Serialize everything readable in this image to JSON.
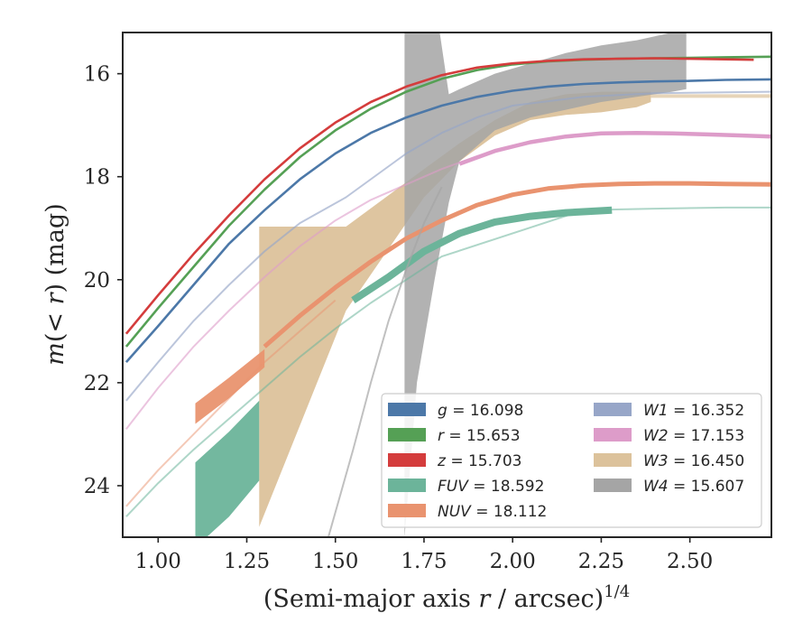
{
  "chart_data": {
    "type": "line",
    "xlabel": "(Semi-major axis r / arcsec)^(1/4)",
    "ylabel": "m(< r) (mag)",
    "xlim": [
      0.9,
      2.73
    ],
    "ylim": [
      25.0,
      15.2
    ],
    "y_inverted": true,
    "grid": false,
    "legend_position": "lower-right",
    "x_ticks": [
      "1.00",
      "1.25",
      "1.50",
      "1.75",
      "2.00",
      "2.25",
      "2.50"
    ],
    "x_tick_values": [
      1.0,
      1.25,
      1.5,
      1.75,
      2.0,
      2.25,
      2.5
    ],
    "y_ticks": [
      "16",
      "18",
      "20",
      "22",
      "24"
    ],
    "y_tick_values": [
      16,
      18,
      20,
      22,
      24
    ],
    "legend": [
      {
        "label": "g = 16.098",
        "color": "#4c78a8"
      },
      {
        "label": "r = 15.653",
        "color": "#55a055"
      },
      {
        "label": "z = 15.703",
        "color": "#d43c3c"
      },
      {
        "label": "FUV = 18.592",
        "color": "#6cb49a"
      },
      {
        "label": "NUV = 18.112",
        "color": "#e9936f"
      },
      {
        "label": "W1 = 16.352",
        "color": "#97a6c8"
      },
      {
        "label": "W2 = 17.153",
        "color": "#dd9cc9"
      },
      {
        "label": "W3 = 16.450",
        "color": "#dcc29b"
      },
      {
        "label": "W4 = 15.607",
        "color": "#a5a5a5"
      }
    ],
    "series": [
      {
        "name": "g",
        "color": "#4c78a8",
        "width": 2.6,
        "opacity": 1,
        "x": [
          0.91,
          1.0,
          1.1,
          1.2,
          1.3,
          1.4,
          1.5,
          1.6,
          1.7,
          1.8,
          1.9,
          2.0,
          2.1,
          2.2,
          2.3,
          2.4,
          2.5,
          2.6,
          2.73
        ],
        "y": [
          21.6,
          20.9,
          20.1,
          19.3,
          18.65,
          18.05,
          17.55,
          17.15,
          16.85,
          16.62,
          16.45,
          16.33,
          16.25,
          16.2,
          16.17,
          16.15,
          16.14,
          16.12,
          16.11
        ]
      },
      {
        "name": "r",
        "color": "#55a055",
        "width": 2.6,
        "opacity": 1,
        "x": [
          0.91,
          1.0,
          1.1,
          1.2,
          1.3,
          1.4,
          1.5,
          1.6,
          1.7,
          1.8,
          1.9,
          2.0,
          2.1,
          2.2,
          2.3,
          2.4,
          2.5,
          2.6,
          2.73
        ],
        "y": [
          21.3,
          20.55,
          19.75,
          18.95,
          18.25,
          17.62,
          17.1,
          16.68,
          16.35,
          16.1,
          15.93,
          15.82,
          15.76,
          15.73,
          15.71,
          15.7,
          15.69,
          15.68,
          15.67
        ]
      },
      {
        "name": "z",
        "color": "#d43c3c",
        "width": 2.6,
        "opacity": 1,
        "x": [
          0.91,
          1.0,
          1.1,
          1.2,
          1.3,
          1.4,
          1.5,
          1.6,
          1.7,
          1.8,
          1.9,
          2.0,
          2.1,
          2.2,
          2.3,
          2.4,
          2.5,
          2.6,
          2.68
        ],
        "y": [
          21.05,
          20.3,
          19.5,
          18.75,
          18.05,
          17.45,
          16.95,
          16.55,
          16.25,
          16.03,
          15.88,
          15.8,
          15.75,
          15.72,
          15.71,
          15.7,
          15.71,
          15.72,
          15.73
        ]
      },
      {
        "name": "W1",
        "color": "#97a6c8",
        "width": 2.0,
        "opacity": 0.65,
        "x": [
          0.91,
          1.0,
          1.1,
          1.2,
          1.3,
          1.4,
          1.53,
          1.7,
          1.8,
          1.9,
          2.0,
          2.2,
          2.4,
          2.6,
          2.73
        ],
        "y": [
          22.35,
          21.6,
          20.8,
          20.1,
          19.45,
          18.9,
          18.4,
          17.55,
          17.15,
          16.85,
          16.62,
          16.45,
          16.38,
          16.36,
          16.35
        ]
      },
      {
        "name": "W2",
        "color": "#dd9cc9",
        "width": 2.0,
        "opacity": 0.6,
        "x": [
          0.91,
          1.0,
          1.1,
          1.2,
          1.3,
          1.4,
          1.5,
          1.6,
          1.7,
          1.8,
          1.9,
          2.0,
          2.1,
          2.2,
          2.3,
          2.4,
          2.5,
          2.6,
          2.73
        ],
        "y": [
          22.9,
          22.1,
          21.3,
          20.6,
          19.95,
          19.35,
          18.85,
          18.45,
          18.15,
          17.85,
          17.6,
          17.4,
          17.28,
          17.18,
          17.15,
          17.16,
          17.18,
          17.2,
          17.22
        ]
      },
      {
        "name": "W2-band",
        "color": "#dd9cc9",
        "width": 4.5,
        "opacity": 1,
        "x": [
          1.85,
          1.95,
          2.05,
          2.15,
          2.25,
          2.35,
          2.45,
          2.55,
          2.65,
          2.73
        ],
        "y": [
          17.75,
          17.5,
          17.33,
          17.22,
          17.16,
          17.15,
          17.16,
          17.18,
          17.2,
          17.22
        ]
      },
      {
        "name": "NUV-faint",
        "color": "#e9936f",
        "width": 2.0,
        "opacity": 0.5,
        "x": [
          0.91,
          1.0,
          1.1,
          1.2,
          1.3,
          1.4,
          1.5
        ],
        "y": [
          24.4,
          23.7,
          23.0,
          22.3,
          21.6,
          21.0,
          20.4
        ]
      },
      {
        "name": "NUV",
        "color": "#e9936f",
        "width": 5,
        "opacity": 1,
        "x": [
          1.3,
          1.4,
          1.5,
          1.6,
          1.7,
          1.8,
          1.9,
          2.0,
          2.1,
          2.2,
          2.3,
          2.4,
          2.5,
          2.6,
          2.73
        ],
        "y": [
          21.3,
          20.7,
          20.15,
          19.65,
          19.2,
          18.85,
          18.55,
          18.35,
          18.23,
          18.17,
          18.14,
          18.13,
          18.13,
          18.14,
          18.15
        ]
      },
      {
        "name": "FUV-faint",
        "color": "#6cb49a",
        "width": 2.0,
        "opacity": 0.55,
        "x": [
          0.91,
          1.0,
          1.1,
          1.2,
          1.3,
          1.4,
          1.5,
          1.6,
          1.7,
          1.8,
          2.2,
          2.4,
          2.6,
          2.73
        ],
        "y": [
          24.6,
          23.95,
          23.3,
          22.7,
          22.1,
          21.5,
          20.95,
          20.45,
          20.0,
          19.55,
          18.65,
          18.62,
          18.6,
          18.6
        ]
      },
      {
        "name": "FUV",
        "color": "#6cb49a",
        "width": 8,
        "opacity": 1,
        "x": [
          1.55,
          1.65,
          1.75,
          1.85,
          1.95,
          2.05,
          2.15,
          2.28
        ],
        "y": [
          20.4,
          19.95,
          19.45,
          19.1,
          18.88,
          18.77,
          18.7,
          18.65
        ]
      },
      {
        "name": "W4-faint",
        "color": "#a5a5a5",
        "width": 2.0,
        "opacity": 0.7,
        "x": [
          1.48,
          1.55,
          1.6,
          1.65,
          1.7,
          1.75,
          1.8
        ],
        "y": [
          25.0,
          23.3,
          22.0,
          20.8,
          19.8,
          18.9,
          18.2
        ]
      }
    ],
    "bands": [
      {
        "name": "W3",
        "color": "#dcc29b",
        "opacity": 0.95,
        "upper": {
          "x": [
            1.285,
            1.53,
            1.75,
            1.85,
            1.95,
            2.05,
            2.15,
            2.25,
            2.35,
            2.39
          ],
          "y": [
            18.97,
            18.97,
            17.85,
            17.35,
            16.9,
            16.55,
            16.4,
            16.35,
            16.35,
            16.35
          ]
        },
        "lower": {
          "x": [
            1.285,
            1.53,
            1.75,
            1.85,
            1.95,
            2.05,
            2.15,
            2.25,
            2.35,
            2.39
          ],
          "y": [
            24.8,
            20.6,
            18.4,
            17.7,
            17.2,
            16.9,
            16.8,
            16.75,
            16.65,
            16.55
          ]
        }
      },
      {
        "name": "W3-tail",
        "color": "#dcc29b",
        "opacity": 0.7,
        "upper": {
          "x": [
            2.39,
            2.73
          ],
          "y": [
            16.4,
            16.4
          ]
        },
        "lower": {
          "x": [
            2.39,
            2.73
          ],
          "y": [
            16.47,
            16.47
          ]
        }
      },
      {
        "name": "W4",
        "color": "#a5a5a5",
        "opacity": 0.85,
        "upper": {
          "x": [
            1.695,
            1.79,
            1.82,
            1.85,
            1.95,
            2.05,
            2.15,
            2.25,
            2.35,
            2.45,
            2.49
          ],
          "y": [
            15.0,
            15.0,
            16.4,
            16.3,
            16.0,
            15.8,
            15.6,
            15.45,
            15.35,
            15.2,
            15.15
          ]
        },
        "lower": {
          "x": [
            1.695,
            1.73,
            1.78,
            1.82,
            1.85,
            1.95,
            2.05,
            2.15,
            2.25,
            2.35,
            2.45,
            2.49
          ],
          "y": [
            25.0,
            22.0,
            20.0,
            18.5,
            17.7,
            17.1,
            16.85,
            16.7,
            16.55,
            16.45,
            16.35,
            16.3
          ]
        }
      },
      {
        "name": "NUV-inner",
        "color": "#e9936f",
        "opacity": 0.95,
        "upper": {
          "x": [
            1.105,
            1.2,
            1.3
          ],
          "y": [
            22.4,
            21.9,
            21.35
          ]
        },
        "lower": {
          "x": [
            1.105,
            1.2,
            1.3
          ],
          "y": [
            22.8,
            22.3,
            21.7
          ]
        }
      },
      {
        "name": "FUV-inner",
        "color": "#6cb49a",
        "opacity": 0.95,
        "upper": {
          "x": [
            1.105,
            1.2,
            1.285
          ],
          "y": [
            23.55,
            22.95,
            22.35
          ]
        },
        "lower": {
          "x": [
            1.105,
            1.2,
            1.285
          ],
          "y": [
            25.2,
            24.6,
            23.9
          ]
        }
      }
    ]
  }
}
